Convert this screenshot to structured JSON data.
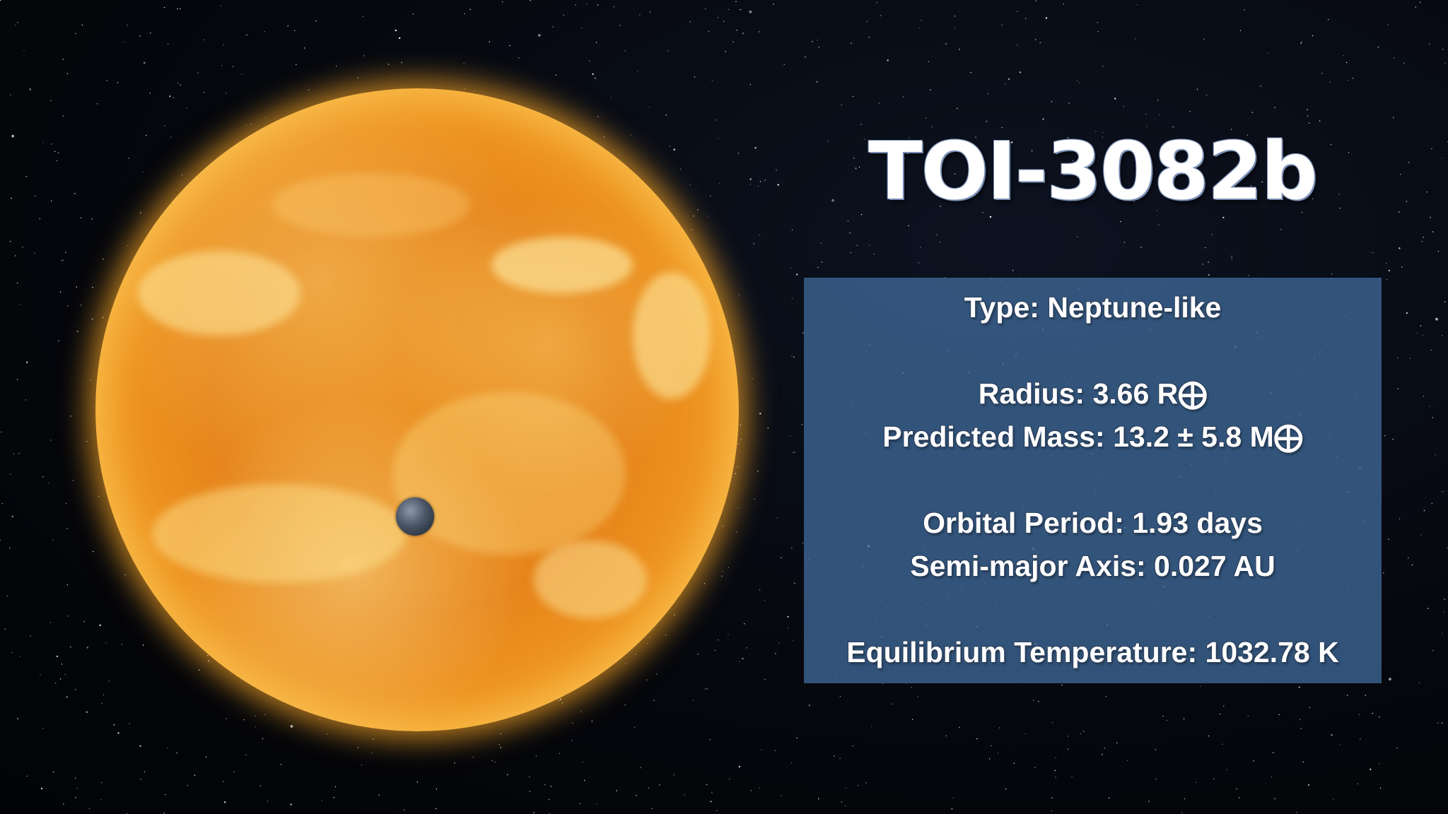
{
  "title": "TOI-3082b",
  "info": {
    "type": "Type: Neptune-like",
    "radius": "Radius: 3.66 R⨁",
    "predicted_mass": "Predicted Mass: 13.2 ± 5.8 M⨁",
    "orbital_period": "Orbital Period: 1.93 days",
    "semi_major_axis": "Semi-major Axis: 0.027 AU",
    "equilibrium_temperature": "Equilibrium Temperature: 1032.78 K"
  },
  "colors": {
    "panel": "#3c6491",
    "star": "#e6841a",
    "planet": "#4a5566"
  }
}
